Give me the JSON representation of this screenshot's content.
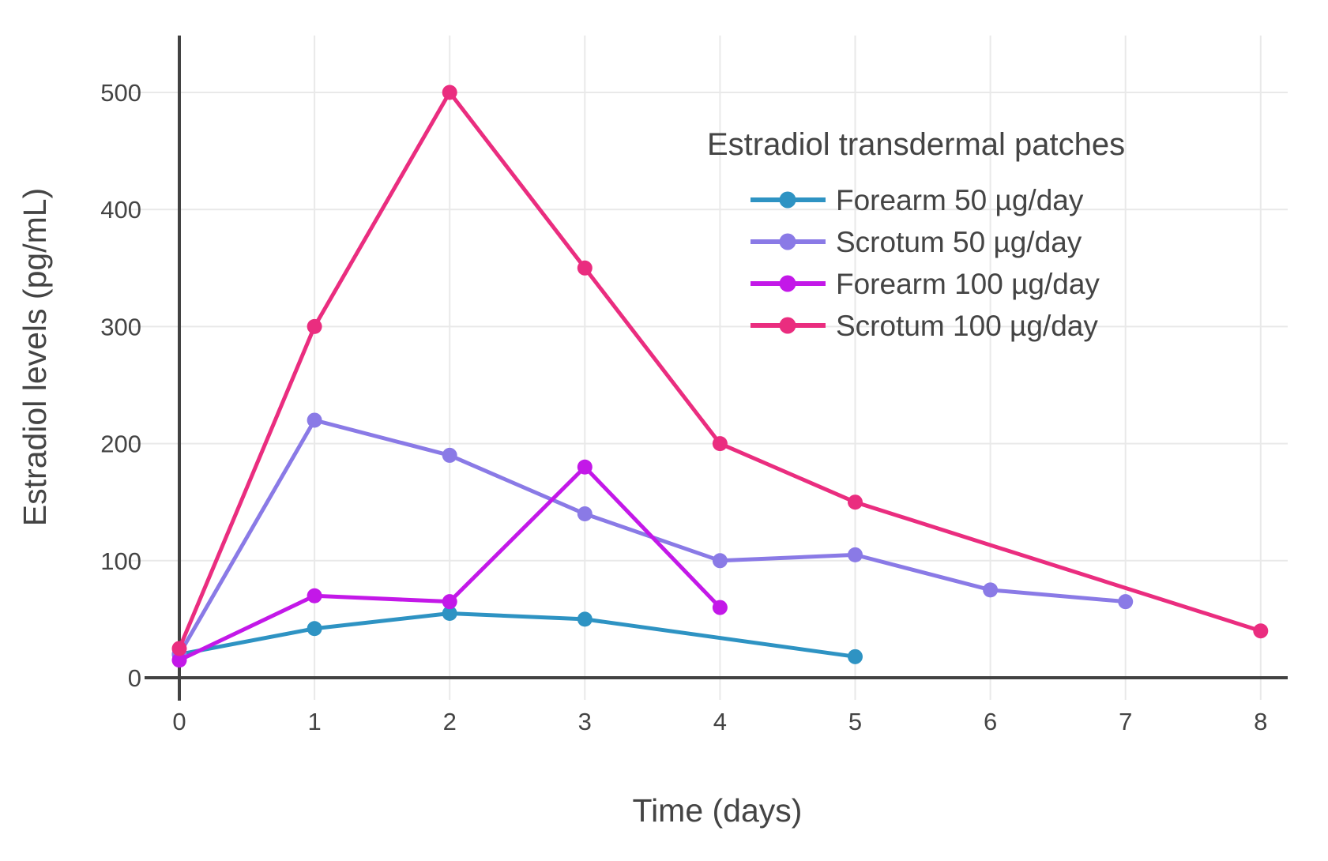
{
  "chart_data": {
    "type": "line",
    "legend_title": "Estradiol transdermal patches",
    "xlabel": "Time (days)",
    "ylabel": "Estradiol levels (pg/mL)",
    "xlim": [
      0,
      8
    ],
    "ylim": [
      0,
      500
    ],
    "xticks": [
      0,
      1,
      2,
      3,
      4,
      5,
      6,
      7,
      8
    ],
    "yticks": [
      0,
      100,
      200,
      300,
      400,
      500
    ],
    "grid": true,
    "legend_position": "top-right-inside",
    "series": [
      {
        "name": "Forearm 50 µg/day",
        "color": "#2E93C3",
        "x": [
          0,
          1,
          2,
          3,
          5
        ],
        "y": [
          20,
          42,
          55,
          50,
          18
        ]
      },
      {
        "name": "Scrotum 50 µg/day",
        "color": "#8A7AE6",
        "x": [
          0,
          1,
          2,
          3,
          4,
          5,
          6,
          7
        ],
        "y": [
          20,
          220,
          190,
          140,
          100,
          105,
          75,
          65
        ]
      },
      {
        "name": "Forearm 100 µg/day",
        "color": "#C318E8",
        "x": [
          0,
          1,
          2,
          3,
          4
        ],
        "y": [
          15,
          70,
          65,
          180,
          60
        ]
      },
      {
        "name": "Scrotum 100 µg/day",
        "color": "#EA2D7F",
        "x": [
          0,
          1,
          2,
          3,
          4,
          5,
          8
        ],
        "y": [
          25,
          300,
          500,
          350,
          200,
          150,
          40
        ]
      }
    ],
    "style": {
      "axis_color": "#424242",
      "grid_color": "#E9E9E9",
      "text_color": "#444444",
      "background": "#FFFFFF"
    }
  }
}
